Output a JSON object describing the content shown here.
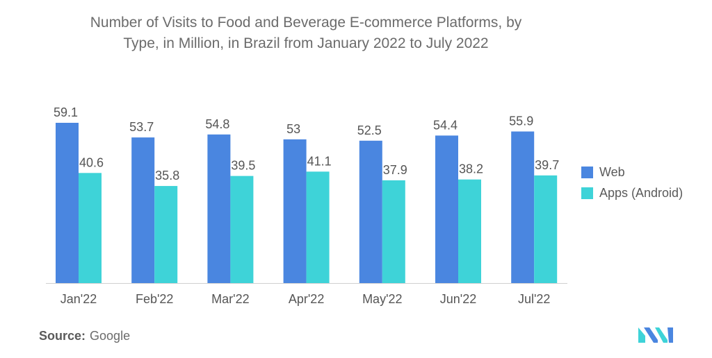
{
  "title": "Number of Visits to Food and Beverage E-commerce Platforms, by Type, in Million, in Brazil from January 2022 to July 2022",
  "title_line1": "Number of Visits to Food and Beverage E-commerce Platforms, by",
  "title_line2": "Type, in Million, in Brazil from January 2022 to July 2022",
  "source_label": "Source:",
  "source_value": "Google",
  "chart_data": {
    "type": "bar",
    "title": "Number of Visits to Food and Beverage E-commerce Platforms, by Type, in Million, in Brazil from January 2022 to July 2022",
    "categories": [
      "Jan'22",
      "Feb'22",
      "Mar'22",
      "Apr'22",
      "May'22",
      "Jun'22",
      "Jul'22"
    ],
    "series": [
      {
        "name": "Web",
        "color": "#4a86e0",
        "values": [
          59.1,
          53.7,
          54.8,
          53,
          52.5,
          54.4,
          55.9
        ],
        "labels": [
          "59.1",
          "53.7",
          "54.8",
          "53",
          "52.5",
          "54.4",
          "55.9"
        ]
      },
      {
        "name": "Apps (Android)",
        "color": "#3ed3d8",
        "values": [
          40.6,
          35.8,
          39.5,
          41.1,
          37.9,
          38.2,
          39.7
        ],
        "labels": [
          "40.6",
          "35.8",
          "39.5",
          "41.1",
          "37.9",
          "38.2",
          "39.7"
        ]
      }
    ],
    "xlabel": "",
    "ylabel": "",
    "ylim": [
      0,
      59.1
    ],
    "grid": false,
    "legend_position": "right"
  }
}
